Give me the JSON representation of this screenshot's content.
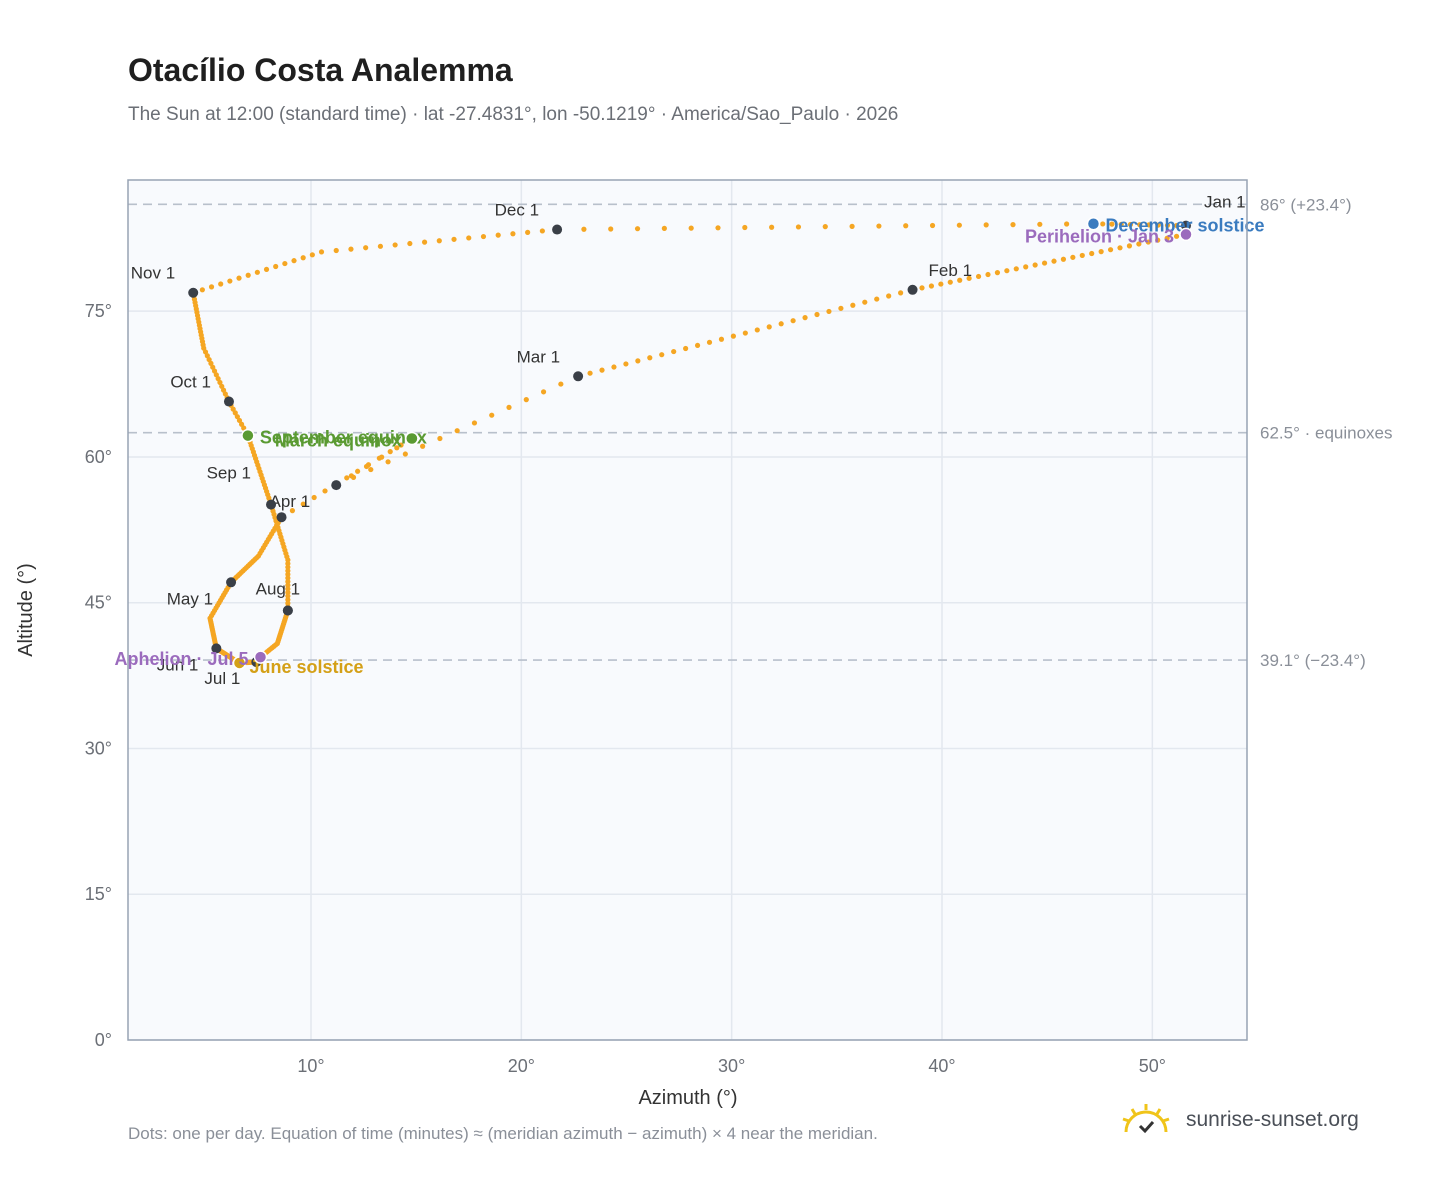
{
  "header": {
    "title": "Otacílio Costa Analemma",
    "subtitle": "The Sun at 12:00 (standard time) · lat -27.4831°, lon -50.1219° · America/Sao_Paulo · 2026"
  },
  "footer": {
    "note": "Dots: one per day. Equation of time (minutes) ≈ (meridian azimuth − azimuth) × 4 near the meridian.",
    "brand": "sunrise-sunset.org"
  },
  "icons": {
    "brand": "sun-logo-icon"
  },
  "colors": {
    "path": "#f5a623",
    "month_marker": "#3a3f47",
    "equinox": "#5a9a32",
    "june_solstice": "#d4a017",
    "december_solstice": "#3a7bbf",
    "apsis": "#9b6bbd",
    "plot_bg": "#f8fafd",
    "grid": "#e3e8ef",
    "reference_line": "#b8c0cb"
  },
  "chart_data": {
    "type": "scatter",
    "title": "Otacílio Costa Analemma",
    "xlabel": "Azimuth (°)",
    "ylabel": "Altitude (°)",
    "xlim": [
      1.3,
      54.5
    ],
    "ylim": [
      0,
      88.5
    ],
    "x_ticks": [
      10,
      20,
      30,
      40,
      50
    ],
    "x_tick_labels": [
      "10°",
      "20°",
      "30°",
      "40°",
      "50°"
    ],
    "y_ticks": [
      0,
      15,
      30,
      45,
      60,
      75
    ],
    "y_tick_labels": [
      "0°",
      "15°",
      "30°",
      "45°",
      "60°",
      "75°"
    ],
    "grid": true,
    "reference_lines": [
      {
        "y": 86.0,
        "label": "86° (+23.4°)"
      },
      {
        "y": 62.5,
        "label": "62.5° · equinoxes"
      },
      {
        "y": 39.1,
        "label": "39.1° (−23.4°)"
      }
    ],
    "path_note": "one dot per day",
    "path_anchors": [
      {
        "date": "Jan 1",
        "x": 51.6,
        "y": 83.8
      },
      {
        "date": "Jan 3",
        "x": 51.6,
        "y": 82.9
      },
      {
        "date": "Feb 1",
        "x": 38.6,
        "y": 77.2
      },
      {
        "date": "Mar 1",
        "x": 22.7,
        "y": 68.3
      },
      {
        "date": "Mar 20",
        "x": 14.8,
        "y": 61.9
      },
      {
        "date": "Mar 15",
        "x": 11.2,
        "y": 57.1
      },
      {
        "date": "Apr 1",
        "x": 8.6,
        "y": 53.8
      },
      {
        "date": "Apr 15",
        "x": 7.5,
        "y": 49.8
      },
      {
        "date": "May 1",
        "x": 6.2,
        "y": 47.1
      },
      {
        "date": "May 15",
        "x": 5.2,
        "y": 43.4
      },
      {
        "date": "Jun 1",
        "x": 5.5,
        "y": 40.3
      },
      {
        "date": "Jun 21",
        "x": 6.6,
        "y": 38.8
      },
      {
        "date": "Jul 1",
        "x": 7.4,
        "y": 38.9
      },
      {
        "date": "Jul 5",
        "x": 7.6,
        "y": 39.4
      },
      {
        "date": "Jul 15",
        "x": 8.4,
        "y": 40.8
      },
      {
        "date": "Aug 1",
        "x": 8.9,
        "y": 44.2
      },
      {
        "date": "Aug 15",
        "x": 8.9,
        "y": 49.4
      },
      {
        "date": "Sep 1",
        "x": 8.1,
        "y": 55.1
      },
      {
        "date": "Sep 22",
        "x": 7.0,
        "y": 62.2
      },
      {
        "date": "Oct 1",
        "x": 6.1,
        "y": 65.7
      },
      {
        "date": "Oct 15",
        "x": 4.9,
        "y": 71.2
      },
      {
        "date": "Nov 1",
        "x": 4.4,
        "y": 76.9
      },
      {
        "date": "Nov 15",
        "x": 10.5,
        "y": 81.1
      },
      {
        "date": "Dec 1",
        "x": 21.7,
        "y": 83.4
      },
      {
        "date": "Dec 21",
        "x": 47.2,
        "y": 84.0
      },
      {
        "date": "Dec 31",
        "x": 51.6,
        "y": 83.8
      }
    ],
    "month_markers": [
      {
        "label": "Jan 1",
        "x": 51.6,
        "y": 83.8
      },
      {
        "label": "Feb 1",
        "x": 38.6,
        "y": 77.2
      },
      {
        "label": "Mar 1",
        "x": 22.7,
        "y": 68.3
      },
      {
        "label": "Apr 1",
        "x": 8.6,
        "y": 53.8
      },
      {
        "label": "May 1",
        "x": 6.2,
        "y": 47.1
      },
      {
        "label": "Jun 1",
        "x": 5.5,
        "y": 40.3
      },
      {
        "label": "Jul 1",
        "x": 7.4,
        "y": 38.9
      },
      {
        "label": "Aug 1",
        "x": 8.9,
        "y": 44.2
      },
      {
        "label": "Sep 1",
        "x": 8.1,
        "y": 55.1
      },
      {
        "label": "Oct 1",
        "x": 6.1,
        "y": 65.7
      },
      {
        "label": "Nov 1",
        "x": 4.4,
        "y": 76.9
      },
      {
        "label": "Dec 1",
        "x": 21.7,
        "y": 83.4
      },
      {
        "label": "",
        "x": 11.2,
        "y": 57.1
      },
      {
        "label": "",
        "x": 8.9,
        "y": 44.2
      }
    ],
    "events": [
      {
        "label": "March equinox",
        "x": 14.8,
        "y": 61.9,
        "kind": "equinox"
      },
      {
        "label": "September equinox",
        "x": 7.0,
        "y": 62.2,
        "kind": "equinox"
      },
      {
        "label": "June solstice",
        "x": 6.6,
        "y": 38.8,
        "kind": "june_solstice"
      },
      {
        "label": "December solstice",
        "x": 47.2,
        "y": 84.0,
        "kind": "december_solstice"
      },
      {
        "label": "Perihelion · Jan 3",
        "x": 51.6,
        "y": 82.9,
        "kind": "apsis"
      },
      {
        "label": "Aphelion · Jul 5",
        "x": 7.6,
        "y": 39.4,
        "kind": "apsis"
      }
    ]
  }
}
